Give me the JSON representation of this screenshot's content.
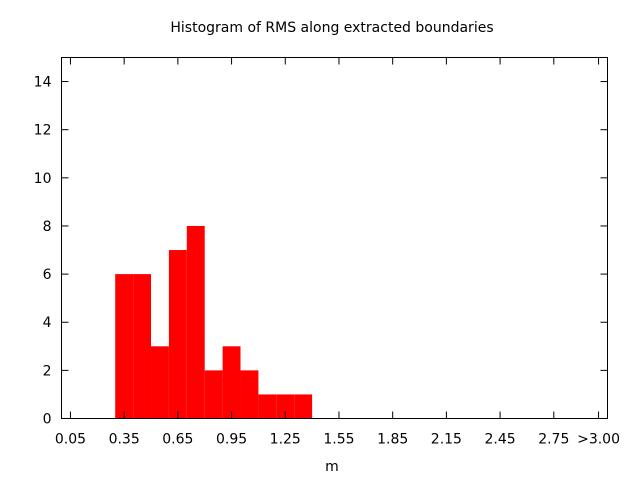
{
  "chart_data": {
    "type": "bar",
    "title": "Histogram of RMS along extracted boundaries",
    "xlabel": "m",
    "ylabel": "",
    "bin_width": 0.1,
    "bins": [
      {
        "start": 0.3,
        "end": 0.4,
        "count": 6
      },
      {
        "start": 0.4,
        "end": 0.5,
        "count": 6
      },
      {
        "start": 0.5,
        "end": 0.6,
        "count": 3
      },
      {
        "start": 0.6,
        "end": 0.7,
        "count": 7
      },
      {
        "start": 0.7,
        "end": 0.8,
        "count": 8
      },
      {
        "start": 0.8,
        "end": 0.9,
        "count": 2
      },
      {
        "start": 0.9,
        "end": 1.0,
        "count": 3
      },
      {
        "start": 1.0,
        "end": 1.1,
        "count": 2
      },
      {
        "start": 1.1,
        "end": 1.2,
        "count": 1
      },
      {
        "start": 1.2,
        "end": 1.3,
        "count": 1
      },
      {
        "start": 1.3,
        "end": 1.4,
        "count": 1
      }
    ],
    "xlim": [
      0.0,
      3.05
    ],
    "ylim": [
      0,
      15
    ],
    "x_ticks": [
      {
        "value": 0.05,
        "label": "0.05"
      },
      {
        "value": 0.35,
        "label": "0.35"
      },
      {
        "value": 0.65,
        "label": "0.65"
      },
      {
        "value": 0.95,
        "label": "0.95"
      },
      {
        "value": 1.25,
        "label": "1.25"
      },
      {
        "value": 1.55,
        "label": "1.55"
      },
      {
        "value": 1.85,
        "label": "1.85"
      },
      {
        "value": 2.15,
        "label": "2.15"
      },
      {
        "value": 2.45,
        "label": "2.45"
      },
      {
        "value": 2.75,
        "label": "2.75"
      },
      {
        "value": 3.0,
        "label": ">3.00"
      }
    ],
    "y_ticks": [
      {
        "value": 0,
        "label": "0"
      },
      {
        "value": 2,
        "label": "2"
      },
      {
        "value": 4,
        "label": "4"
      },
      {
        "value": 6,
        "label": "6"
      },
      {
        "value": 8,
        "label": "8"
      },
      {
        "value": 10,
        "label": "10"
      },
      {
        "value": 12,
        "label": "12"
      },
      {
        "value": 14,
        "label": "14"
      }
    ],
    "grid": false,
    "bar_color": "#ff0000"
  }
}
